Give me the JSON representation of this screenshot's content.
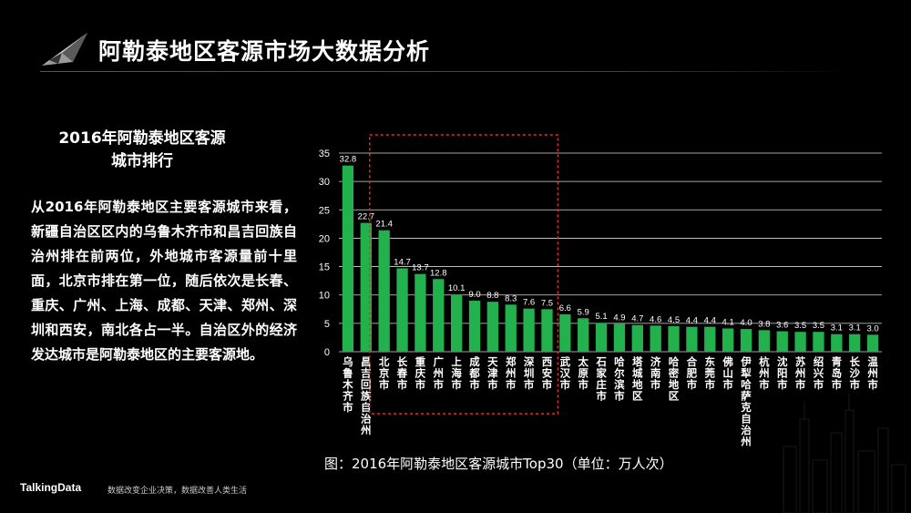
{
  "header": {
    "title": "阿勒泰地区客源市场大数据分析",
    "logo_icon": "arrowhead-logo-icon"
  },
  "left_panel": {
    "section_title_line1": "2016年阿勒泰地区客源",
    "section_title_line2": "城市排行",
    "body_text": "从2016年阿勒泰地区主要客源城市来看，新疆自治区区内的乌鲁木齐市和昌吉回族自治州排在前两位，外地城市客源量前十里面，北京市排在第一位，随后依次是长春、重庆、广州、上海、成都、天津、郑州、深圳和西安，南北各占一半。自治区外的经济发达城市是阿勒泰地区的主要客源地。"
  },
  "chart_caption": "图：2016年阿勒泰地区客源城市Top30（单位：万人次）",
  "footer": {
    "brand": "TalkingData",
    "slogan": "数据改变企业决策，数据改善人类生活"
  },
  "colors": {
    "bar": "#22b14c",
    "highlight_box": "#e03030",
    "gridline": "#d8d8d8",
    "background": "#000000"
  },
  "chart_data": {
    "type": "bar",
    "categories": [
      "乌鲁木齐市",
      "昌吉回族自治州",
      "北京市",
      "长春市",
      "重庆市",
      "广州市",
      "上海市",
      "成都市",
      "天津市",
      "郑州市",
      "深圳市",
      "西安市",
      "武汉市",
      "太原市",
      "石家庄市",
      "哈尔滨市",
      "塔城地区",
      "济南市",
      "哈密地区",
      "合肥市",
      "东莞市",
      "佛山市",
      "伊犁哈萨克自治州",
      "杭州市",
      "沈阳市",
      "苏州市",
      "绍兴市",
      "青岛市",
      "长沙市",
      "温州市"
    ],
    "values": [
      32.8,
      22.7,
      21.4,
      14.7,
      13.7,
      12.8,
      10.1,
      9.0,
      8.8,
      8.3,
      7.6,
      7.5,
      6.6,
      5.9,
      5.1,
      4.9,
      4.7,
      4.6,
      4.5,
      4.4,
      4.4,
      4.1,
      4.0,
      3.8,
      3.6,
      3.5,
      3.5,
      3.1,
      3.1,
      3.0
    ],
    "value_labels": [
      "32.8",
      "22.7",
      "21.4",
      "14.7",
      "13.7",
      "12.8",
      "10.1",
      "9.0",
      "8.8",
      "8.3",
      "7.6",
      "7.5",
      "6.6",
      "5.9",
      "5.1",
      "4.9",
      "4.7",
      "4.6",
      "4.5",
      "4.4",
      "4.4",
      "4.1",
      "4.0",
      "3.8",
      "3.6",
      "3.5",
      "3.5",
      "3.1",
      "3.1",
      "3.0"
    ],
    "yticks": [
      0,
      5,
      10,
      15,
      20,
      25,
      30,
      35
    ],
    "ylim": [
      0,
      35
    ],
    "grid": true,
    "highlight_range": [
      2,
      11
    ]
  }
}
